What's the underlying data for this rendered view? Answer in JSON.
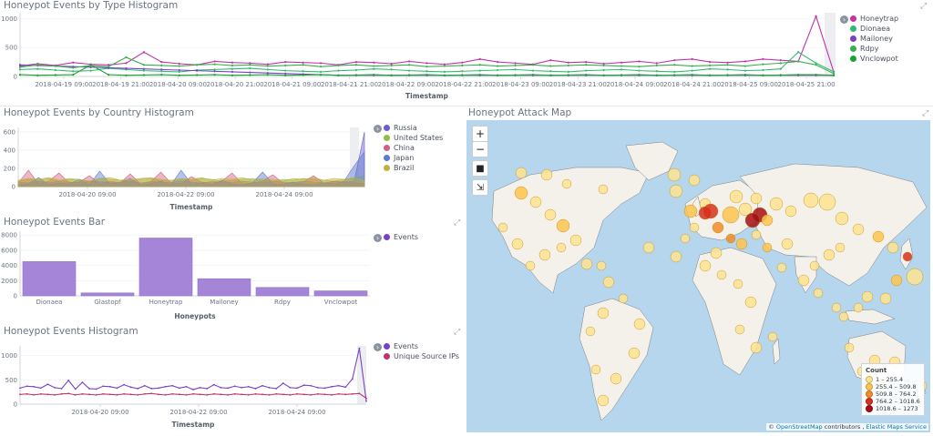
{
  "colors": {
    "honeytrap": "#c233a9",
    "dionaea": "#2ebc6f",
    "mailoney": "#7b3fc4",
    "rdpy": "#36b04d",
    "vnclowpot": "#1aa52f",
    "russia": "#6c5ccc",
    "united_states": "#8cbf47",
    "china": "#d35f7d",
    "japan": "#5a79d1",
    "brazil": "#c1b03c",
    "events_bar": "#a585d8",
    "events_line": "#7a41c6",
    "unique_ips_line": "#c2336f",
    "map_water": "#b6d6ee",
    "map_land": "#f4f1ea"
  },
  "panels": {
    "type_hist": {
      "title": "Honeypot Events by Type Histogram",
      "xlabel": "Timestamp",
      "yticks": [
        "1000",
        "500",
        "0"
      ],
      "xticks": [
        "2018-04-19 09:00",
        "2018-04-19 21:00",
        "2018-04-20 09:00",
        "2018-04-20 21:00",
        "2018-04-21 09:00",
        "2018-04-21 21:00",
        "2018-04-22 09:00",
        "2018-04-22 21:00",
        "2018-04-23 09:00",
        "2018-04-23 21:00",
        "2018-04-24 09:00",
        "2018-04-24 21:00",
        "2018-04-25 09:00",
        "2018-04-25 21:00"
      ],
      "legend": [
        "Honeytrap",
        "Dionaea",
        "Mailoney",
        "Rdpy",
        "Vnclowpot"
      ]
    },
    "country_hist": {
      "title": "Honeypot Events by Country Histogram",
      "xlabel": "Timestamp",
      "yticks": [
        "600",
        "400",
        "200",
        "0"
      ],
      "xticks": [
        "2018-04-20 09:00",
        "2018-04-22 09:00",
        "2018-04-24 09:00"
      ],
      "legend": [
        "Russia",
        "United States",
        "China",
        "Japan",
        "Brazil"
      ]
    },
    "events_bar": {
      "title": "Honeypot Events Bar",
      "xlabel": "Honeypots",
      "yticks": [
        "8000",
        "6000",
        "4000",
        "2000",
        "0"
      ],
      "legend": [
        "Events"
      ]
    },
    "events_hist": {
      "title": "Honeypot Events Histogram",
      "xlabel": "Timestamp",
      "yticks": [
        "1000",
        "500",
        "0"
      ],
      "xticks": [
        "2018-04-20 09:00",
        "2018-04-22 09:00",
        "2018-04-24 09:00"
      ],
      "legend": [
        "Events",
        "Unique Source IPs"
      ]
    },
    "attack_map": {
      "title": "Honeypot Attack Map",
      "zoom_in": "+",
      "zoom_out": "−",
      "legend_title": "Count",
      "legend_ranges": [
        "1 – 255.4",
        "255.4 – 509.8",
        "509.8 – 764.2",
        "764.2 – 1018.6",
        "1018.6 – 1273"
      ],
      "legend_colors": [
        "#fee391",
        "#fec44f",
        "#f28c28",
        "#d7301f",
        "#a50f15"
      ],
      "attribution_prefix": "©",
      "attribution_osm": "OpenStreetMap",
      "attribution_mid": "contributors ,",
      "attribution_ems": "Elastic Maps Service"
    }
  },
  "chart_data": [
    {
      "type": "line",
      "title": "Honeypot Events by Type Histogram",
      "xlabel": "Timestamp",
      "ylabel": "",
      "ylim": [
        0,
        1100
      ],
      "x_range": [
        "2018-04-18 23:00",
        "2018-04-25 23:00"
      ],
      "series": [
        {
          "name": "Honeytrap",
          "values": [
            180,
            220,
            190,
            240,
            210,
            200,
            230,
            420,
            250,
            220,
            200,
            260,
            240,
            230,
            210,
            250,
            240,
            230,
            200,
            250,
            240,
            220,
            260,
            230,
            210,
            240,
            300,
            250,
            230,
            210,
            280,
            240,
            250,
            220,
            240,
            260,
            230,
            280,
            300,
            250,
            240,
            260,
            300,
            280,
            260,
            1040,
            80
          ]
        },
        {
          "name": "Dionaea",
          "values": [
            120,
            130,
            110,
            90,
            100,
            140,
            120,
            100,
            90,
            80,
            110,
            120,
            130,
            140,
            120,
            100,
            90,
            80,
            100,
            110,
            130,
            120,
            100,
            90,
            80,
            90,
            100,
            110,
            120,
            100,
            90,
            80,
            100,
            110,
            120,
            100,
            90,
            80,
            100,
            130,
            120,
            100,
            110,
            130,
            420,
            230,
            80
          ]
        },
        {
          "name": "Mailoney",
          "values": [
            200,
            190,
            180,
            170,
            160,
            150,
            140,
            130,
            120,
            110,
            100,
            90,
            80,
            70,
            60,
            50,
            40,
            30,
            20,
            20,
            20,
            20,
            20,
            20,
            20,
            20,
            20,
            20,
            20,
            20,
            20,
            20,
            20,
            20,
            20,
            20,
            20,
            20,
            20,
            20,
            20,
            20,
            20,
            20,
            20,
            20,
            20
          ]
        },
        {
          "name": "Rdpy",
          "values": [
            160,
            200,
            180,
            150,
            190,
            170,
            330,
            200,
            190,
            180,
            200,
            210,
            190,
            200,
            180,
            190,
            200,
            170,
            190,
            200,
            180,
            190,
            200,
            170,
            180,
            190,
            200,
            180,
            190,
            200,
            180,
            190,
            200,
            190,
            180,
            170,
            190,
            200,
            180,
            190,
            200,
            180,
            210,
            230,
            260,
            200,
            50
          ]
        },
        {
          "name": "Vnclowpot",
          "values": [
            30,
            20,
            25,
            30,
            200,
            30,
            20,
            25,
            30,
            20,
            25,
            30,
            20,
            25,
            30,
            20,
            25,
            30,
            20,
            25,
            30,
            20,
            25,
            30,
            20,
            25,
            30,
            20,
            25,
            30,
            20,
            25,
            30,
            20,
            25,
            30,
            20,
            25,
            30,
            20,
            25,
            30,
            20,
            25,
            30,
            30,
            20
          ]
        }
      ]
    },
    {
      "type": "area",
      "title": "Honeypot Events by Country Histogram",
      "xlabel": "Timestamp",
      "ylim": [
        0,
        650
      ],
      "series": [
        {
          "name": "Russia",
          "values": [
            50,
            40,
            60,
            45,
            55,
            50,
            40,
            60,
            55,
            45,
            50,
            60,
            40,
            55,
            50,
            45,
            60,
            50,
            40,
            55,
            50,
            45,
            60,
            50,
            40,
            55,
            50,
            45,
            60,
            50,
            40,
            55,
            50,
            60,
            600
          ]
        },
        {
          "name": "United States",
          "values": [
            60,
            80,
            70,
            90,
            60,
            80,
            70,
            60,
            90,
            80,
            70,
            60,
            80,
            90,
            70,
            60,
            80,
            70,
            90,
            80,
            60,
            70,
            80,
            90,
            70,
            60,
            80,
            70,
            90,
            80,
            70,
            60,
            80,
            90,
            120
          ]
        },
        {
          "name": "China",
          "values": [
            40,
            180,
            30,
            60,
            150,
            40,
            50,
            120,
            30,
            60,
            40,
            140,
            30,
            50,
            160,
            40,
            30,
            110,
            50,
            40,
            60,
            150,
            30,
            40,
            60,
            130,
            40,
            30,
            50,
            120,
            40,
            60,
            50,
            40,
            30
          ]
        },
        {
          "name": "Japan",
          "values": [
            20,
            30,
            100,
            20,
            40,
            30,
            80,
            20,
            170,
            30,
            40,
            90,
            20,
            30,
            60,
            20,
            180,
            30,
            40,
            20,
            70,
            30,
            20,
            40,
            160,
            30,
            20,
            50,
            30,
            20,
            40,
            30,
            60,
            230,
            380
          ]
        },
        {
          "name": "Brazil",
          "values": [
            70,
            90,
            80,
            100,
            70,
            90,
            80,
            60,
            90,
            100,
            70,
            80,
            90,
            100,
            80,
            70,
            90,
            80,
            100,
            70,
            90,
            80,
            100,
            70,
            90,
            80,
            60,
            90,
            80,
            100,
            70,
            90,
            80,
            100,
            60
          ]
        }
      ]
    },
    {
      "type": "bar",
      "title": "Honeypot Events Bar",
      "xlabel": "Honeypots",
      "ylim": [
        0,
        8500
      ],
      "categories": [
        "Dionaea",
        "Glastopf",
        "Honeytrap",
        "Mailoney",
        "Rdpy",
        "Vnclowpot"
      ],
      "series": [
        {
          "name": "Events",
          "values": [
            4500,
            380,
            7600,
            2250,
            1100,
            650
          ]
        }
      ]
    },
    {
      "type": "line",
      "title": "Honeypot Events Histogram",
      "xlabel": "Timestamp",
      "ylim": [
        0,
        1200
      ],
      "series": [
        {
          "name": "Events",
          "values": [
            330,
            370,
            360,
            330,
            410,
            340,
            320,
            490,
            310,
            450,
            320,
            310,
            370,
            360,
            330,
            400,
            350,
            320,
            380,
            320,
            330,
            360,
            380,
            330,
            360,
            300,
            340,
            320,
            400,
            340,
            330,
            370,
            340,
            360,
            320,
            380,
            340,
            320,
            430,
            340,
            330,
            390,
            380,
            340,
            330,
            360,
            380,
            350,
            520,
            1150,
            60
          ]
        },
        {
          "name": "Unique Source IPs",
          "values": [
            200,
            210,
            190,
            210,
            200,
            190,
            210,
            220,
            190,
            210,
            200,
            190,
            210,
            200,
            190,
            210,
            200,
            190,
            210,
            220,
            200,
            190,
            210,
            200,
            190,
            210,
            200,
            190,
            210,
            200,
            190,
            210,
            200,
            190,
            210,
            200,
            190,
            210,
            200,
            190,
            210,
            200,
            190,
            210,
            200,
            190,
            210,
            200,
            210,
            220,
            120
          ]
        }
      ]
    }
  ]
}
